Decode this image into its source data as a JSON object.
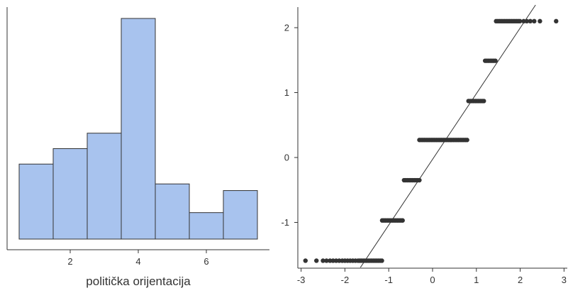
{
  "colors": {
    "bar_fill": "#a8c3ee",
    "bar_stroke": "#333333",
    "axis": "#333333",
    "point": "#333333",
    "line": "#333333"
  },
  "chart_data": [
    {
      "type": "bar",
      "title": "",
      "xlabel": "politička orijentacija",
      "ylabel": "",
      "x_range": [
        0.5,
        7.5
      ],
      "xticks": [
        2,
        4,
        6
      ],
      "categories": [
        1,
        2,
        3,
        4,
        5,
        6,
        7
      ],
      "values": [
        0.34,
        0.41,
        0.48,
        1.0,
        0.25,
        0.12,
        0.22
      ],
      "grid": false
    },
    {
      "type": "scatter",
      "title": "",
      "xlabel": "",
      "ylabel": "",
      "xlim": [
        -3.1,
        3.1
      ],
      "ylim": [
        -1.72,
        2.32
      ],
      "xticks": [
        -3,
        -2,
        -1,
        0,
        1,
        2,
        3
      ],
      "yticks": [
        -1,
        0,
        1,
        2
      ],
      "levels": [
        {
          "y": -1.59,
          "x_from": -1.7,
          "x_to": -1.15,
          "extra_x": [
            -2.9,
            -2.65,
            -2.5,
            -2.42,
            -2.34,
            -2.27,
            -2.2,
            -2.13,
            -2.06,
            -2.0,
            -1.94,
            -1.88,
            -1.82,
            -1.76
          ]
        },
        {
          "y": -0.97,
          "x_from": -1.15,
          "x_to": -0.65,
          "extra_x": []
        },
        {
          "y": -0.35,
          "x_from": -0.65,
          "x_to": -0.3,
          "extra_x": []
        },
        {
          "y": 0.27,
          "x_from": -0.3,
          "x_to": 0.82,
          "extra_x": []
        },
        {
          "y": 0.87,
          "x_from": 0.82,
          "x_to": 1.2,
          "extra_x": []
        },
        {
          "y": 1.49,
          "x_from": 1.2,
          "x_to": 1.45,
          "extra_x": []
        },
        {
          "y": 2.1,
          "x_from": 1.45,
          "x_to": 2.02,
          "extra_x": [
            2.08,
            2.15,
            2.23,
            2.32,
            2.45,
            2.82
          ]
        }
      ],
      "reference_line": {
        "x": [
          -1.8,
          2.35
        ],
        "y": [
          -1.85,
          2.35
        ]
      },
      "grid": false
    }
  ]
}
